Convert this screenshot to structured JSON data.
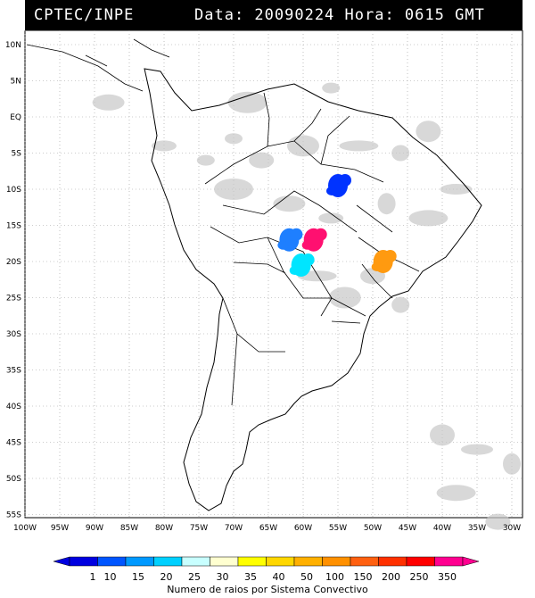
{
  "header": {
    "agency": "CPTEC/INPE",
    "stamp": "Data: 20090224 Hora: 0615 GMT"
  },
  "map": {
    "lat_labels": [
      "10N",
      "5N",
      "EQ",
      "5S",
      "10S",
      "15S",
      "20S",
      "25S",
      "30S",
      "35S",
      "40S",
      "45S",
      "50S",
      "55S"
    ],
    "lon_labels": [
      "100W",
      "95W",
      "90W",
      "85W",
      "80W",
      "75W",
      "70W",
      "65W",
      "60W",
      "55W",
      "50W",
      "45W",
      "40W",
      "35W",
      "30W"
    ],
    "colors": {
      "border": "#000000",
      "grid": "#9a9a9a",
      "cloud": "#c8c8c8"
    },
    "systems": [
      {
        "color": "#0033ff",
        "lon": -55.0,
        "lat": -9.5
      },
      {
        "color": "#1e7fff",
        "lon": -62.0,
        "lat": -17.0
      },
      {
        "color": "#ff1070",
        "lon": -58.5,
        "lat": -17.0
      },
      {
        "color": "#00e5ff",
        "lon": -60.3,
        "lat": -20.5
      },
      {
        "color": "#ff9a10",
        "lon": -48.5,
        "lat": -20.0
      }
    ]
  },
  "legend": {
    "labels": [
      "1",
      "10",
      "15",
      "20",
      "25",
      "30",
      "35",
      "40",
      "50",
      "100",
      "150",
      "200",
      "250",
      "350"
    ],
    "colors": [
      "#0000e0",
      "#0055ff",
      "#0099ff",
      "#00d0ff",
      "#c8ffff",
      "#ffffd0",
      "#ffff00",
      "#ffd700",
      "#ffb000",
      "#ff9000",
      "#ff6010",
      "#ff3000",
      "#ff0000",
      "#ff0090"
    ],
    "caption": "Numero de raios por Sistema Convectivo"
  }
}
